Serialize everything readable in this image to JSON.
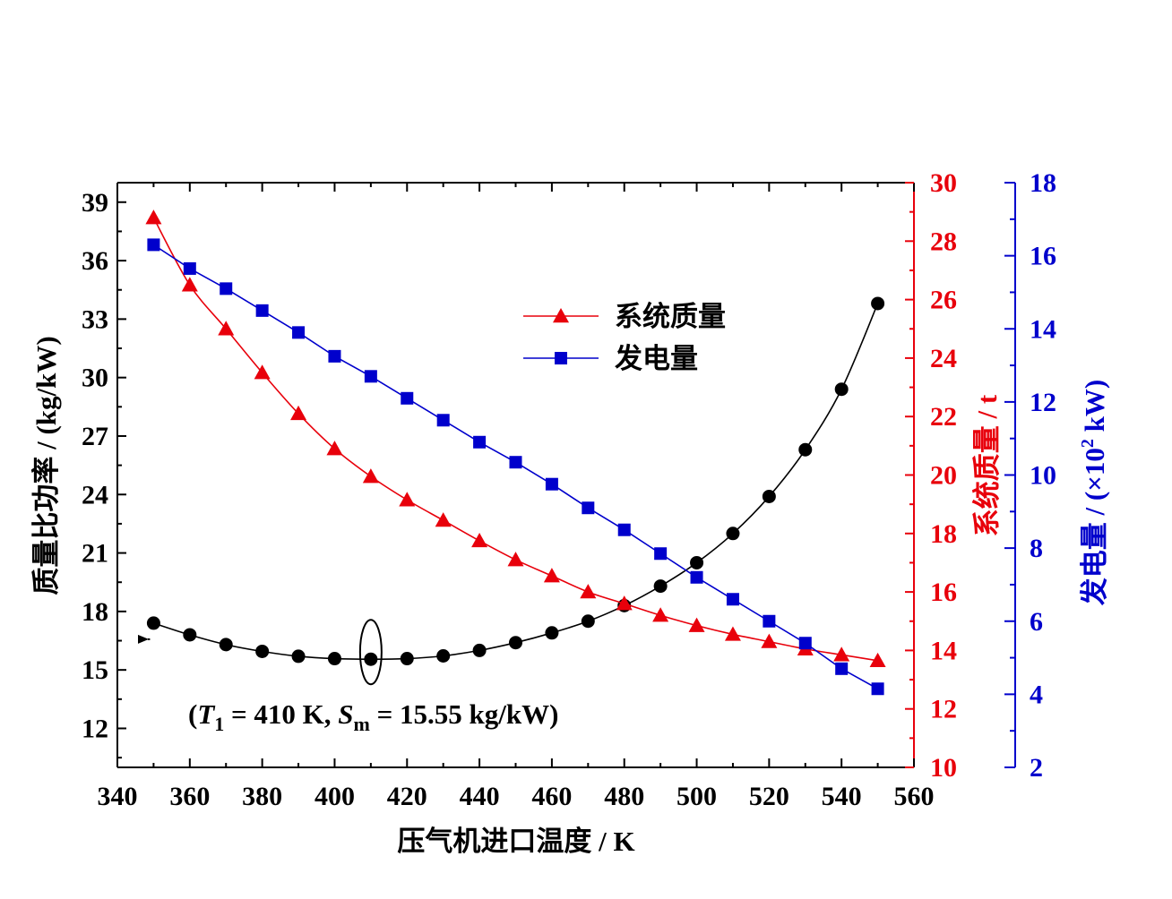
{
  "chart_data": {
    "type": "line",
    "xlabel": "压气机进口温度 / K",
    "xlim": [
      340,
      560
    ],
    "xticks": [
      340,
      360,
      380,
      400,
      420,
      440,
      460,
      480,
      500,
      520,
      540,
      560
    ],
    "x": [
      350,
      360,
      370,
      380,
      390,
      400,
      410,
      420,
      430,
      440,
      450,
      460,
      470,
      480,
      490,
      500,
      510,
      520,
      530,
      540,
      550
    ],
    "axes": {
      "left": {
        "label": "质量比功率 / (kg/kW)",
        "ylim": [
          10,
          40
        ],
        "ticks": [
          12,
          15,
          18,
          21,
          24,
          27,
          30,
          33,
          36,
          39
        ],
        "color": "#000000"
      },
      "right1": {
        "label": "系统质量 / t",
        "ylim": [
          10,
          30
        ],
        "ticks": [
          10,
          12,
          14,
          16,
          18,
          20,
          22,
          24,
          26,
          28,
          30
        ],
        "color": "#e8000b"
      },
      "right2": {
        "label_main": "发电量 / (×10",
        "label_sup": "2",
        "label_end": " kW)",
        "ylim": [
          2,
          18
        ],
        "ticks": [
          2,
          4,
          6,
          8,
          10,
          12,
          14,
          16,
          18
        ],
        "color": "#0000cc"
      }
    },
    "series": [
      {
        "axis": "left",
        "marker": "circle",
        "color": "#000000",
        "values": [
          17.4,
          16.8,
          16.3,
          15.95,
          15.7,
          15.58,
          15.55,
          15.58,
          15.72,
          16.0,
          16.4,
          16.9,
          17.5,
          18.3,
          19.3,
          20.5,
          22.0,
          23.9,
          26.3,
          29.4,
          33.8
        ]
      },
      {
        "name": "系统质量",
        "axis": "right1",
        "marker": "triangle",
        "color": "#e8000b",
        "values": [
          28.8,
          26.5,
          25.0,
          23.5,
          22.1,
          20.9,
          19.95,
          19.15,
          18.45,
          17.75,
          17.1,
          16.55,
          16.0,
          15.6,
          15.2,
          14.85,
          14.55,
          14.3,
          14.05,
          13.85,
          13.65
        ]
      },
      {
        "name": "发电量",
        "axis": "right2",
        "marker": "square",
        "color": "#0000cc",
        "values": [
          16.3,
          15.65,
          15.1,
          14.5,
          13.9,
          13.25,
          12.7,
          12.1,
          11.5,
          10.9,
          10.35,
          9.75,
          9.1,
          8.5,
          7.85,
          7.2,
          6.6,
          6.0,
          5.4,
          4.7,
          4.15
        ]
      }
    ],
    "legend_position": "top-center",
    "annotation": {
      "open": "(",
      "t_var": "T",
      "t_sub": "1",
      "t_mid": " = 410 K, ",
      "s_var": "S",
      "s_sub": "m",
      "s_end": " = 15.55 kg/kW)"
    },
    "grid": false
  }
}
